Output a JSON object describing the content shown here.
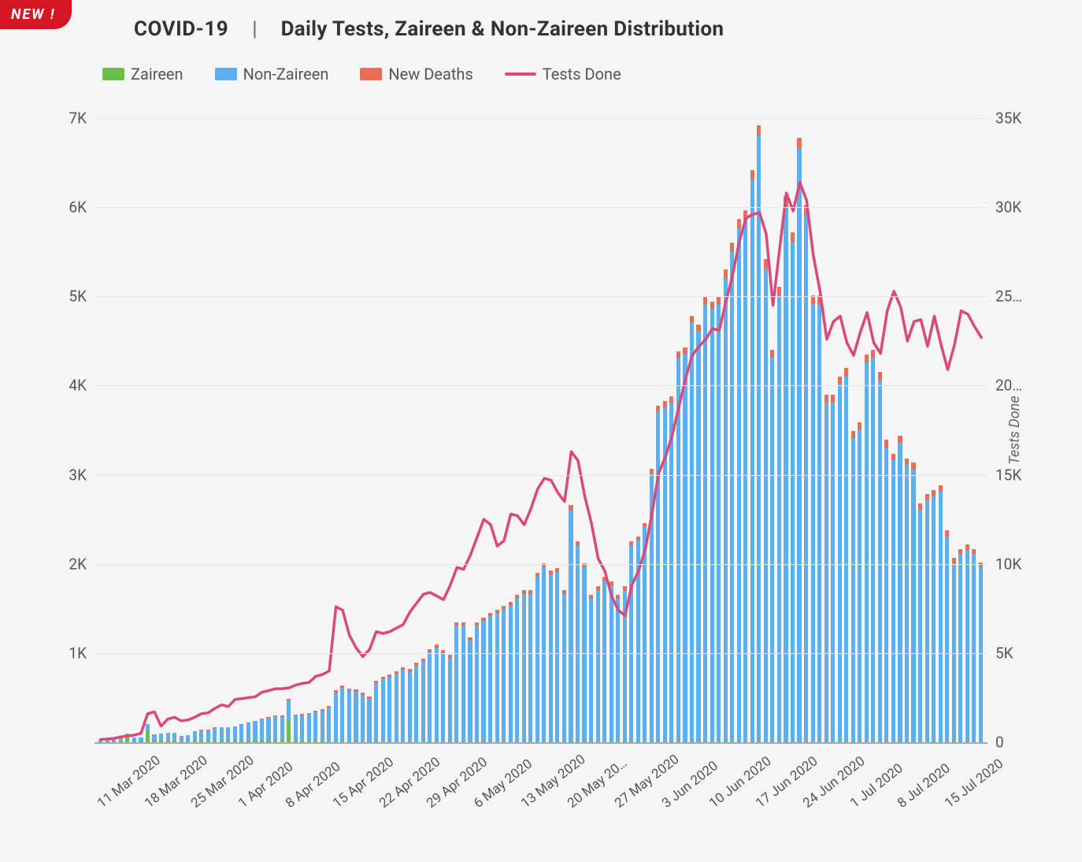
{
  "badge": "NEW !",
  "title": {
    "prefix": "COVID-19",
    "separator": "|",
    "description": "Daily Tests, Zaireen & Non-Zaireen Distribution"
  },
  "legend": [
    {
      "label": "Zaireen",
      "type": "swatch",
      "color": "#6abf4b"
    },
    {
      "label": "Non-Zaireen",
      "type": "swatch",
      "color": "#5bb0ef"
    },
    {
      "label": "New Deaths",
      "type": "swatch",
      "color": "#e86e5a"
    },
    {
      "label": "Tests Done",
      "type": "line",
      "color": "#d94a7a"
    }
  ],
  "chart": {
    "type": "bar+line",
    "background_color": "#f5f5f5",
    "grid_color": "#e6e6e6",
    "axis_color": "#a9a9a9",
    "bar_width_ratio": 0.68,
    "line_width": 3.5,
    "y_left": {
      "min": 0,
      "max": 7000,
      "ticks": [
        0,
        1000,
        2000,
        3000,
        4000,
        5000,
        6000,
        7000
      ],
      "tick_labels": [
        "",
        "1K",
        "2K",
        "3K",
        "4K",
        "5K",
        "6K",
        "7K"
      ],
      "fontsize": 19,
      "color": "#555"
    },
    "y_right": {
      "title": "Tests Done",
      "min": 0,
      "max": 35000,
      "ticks": [
        0,
        5000,
        10000,
        15000,
        20000,
        25000,
        30000,
        35000
      ],
      "tick_labels": [
        "0",
        "5K",
        "10K",
        "15K",
        "20…",
        "25…",
        "30K",
        "35K"
      ],
      "fontsize": 19,
      "color": "#555"
    },
    "x": {
      "ticks_every": 7,
      "start_index": 0,
      "labels": [
        "11 Mar 2020",
        "18 Mar 2020",
        "25 Mar 2020",
        "1 Apr 2020",
        "8 Apr 2020",
        "15 Apr 2020",
        "22 Apr 2020",
        "29 Apr 2020",
        "6 May 2020",
        "13 May 2020",
        "20 May 20…",
        "27 May 2020",
        "3 Jun 2020",
        "10 Jun 2020",
        "17 Jun 2020",
        "24 Jun 2020",
        "1 Jul 2020",
        "8 Jul 2020",
        "15 Jul 2020"
      ],
      "fontsize": 17,
      "color": "#555",
      "rotation_deg": -38
    },
    "series_stack_order": [
      "zaireen",
      "non_zaireen",
      "new_deaths"
    ],
    "series_colors": {
      "zaireen": "#6abf4b",
      "non_zaireen": "#5bb0ef",
      "new_deaths": "#e86e5a",
      "tests_done": "#d94a7a"
    },
    "data": [
      {
        "zaireen": 5,
        "non_zaireen": 20,
        "new_deaths": 0,
        "tests_done": 150
      },
      {
        "zaireen": 5,
        "non_zaireen": 22,
        "new_deaths": 0,
        "tests_done": 180
      },
      {
        "zaireen": 5,
        "non_zaireen": 25,
        "new_deaths": 0,
        "tests_done": 210
      },
      {
        "zaireen": 20,
        "non_zaireen": 48,
        "new_deaths": 1,
        "tests_done": 300
      },
      {
        "zaireen": 60,
        "non_zaireen": 40,
        "new_deaths": 1,
        "tests_done": 350
      },
      {
        "zaireen": 10,
        "non_zaireen": 40,
        "new_deaths": 1,
        "tests_done": 400
      },
      {
        "zaireen": 5,
        "non_zaireen": 50,
        "new_deaths": 1,
        "tests_done": 500
      },
      {
        "zaireen": 120,
        "non_zaireen": 80,
        "new_deaths": 2,
        "tests_done": 1600
      },
      {
        "zaireen": 30,
        "non_zaireen": 60,
        "new_deaths": 2,
        "tests_done": 1700
      },
      {
        "zaireen": 15,
        "non_zaireen": 80,
        "new_deaths": 2,
        "tests_done": 900
      },
      {
        "zaireen": 15,
        "non_zaireen": 90,
        "new_deaths": 2,
        "tests_done": 1300
      },
      {
        "zaireen": 20,
        "non_zaireen": 85,
        "new_deaths": 2,
        "tests_done": 1400
      },
      {
        "zaireen": 10,
        "non_zaireen": 55,
        "new_deaths": 2,
        "tests_done": 1200
      },
      {
        "zaireen": 10,
        "non_zaireen": 70,
        "new_deaths": 3,
        "tests_done": 1250
      },
      {
        "zaireen": 15,
        "non_zaireen": 110,
        "new_deaths": 3,
        "tests_done": 1400
      },
      {
        "zaireen": 15,
        "non_zaireen": 120,
        "new_deaths": 3,
        "tests_done": 1600
      },
      {
        "zaireen": 15,
        "non_zaireen": 120,
        "new_deaths": 3,
        "tests_done": 1650
      },
      {
        "zaireen": 20,
        "non_zaireen": 140,
        "new_deaths": 4,
        "tests_done": 1900
      },
      {
        "zaireen": 15,
        "non_zaireen": 150,
        "new_deaths": 4,
        "tests_done": 2100
      },
      {
        "zaireen": 15,
        "non_zaireen": 150,
        "new_deaths": 4,
        "tests_done": 2000
      },
      {
        "zaireen": 15,
        "non_zaireen": 160,
        "new_deaths": 5,
        "tests_done": 2400
      },
      {
        "zaireen": 15,
        "non_zaireen": 180,
        "new_deaths": 5,
        "tests_done": 2450
      },
      {
        "zaireen": 15,
        "non_zaireen": 200,
        "new_deaths": 5,
        "tests_done": 2500
      },
      {
        "zaireen": 15,
        "non_zaireen": 220,
        "new_deaths": 6,
        "tests_done": 2550
      },
      {
        "zaireen": 15,
        "non_zaireen": 240,
        "new_deaths": 7,
        "tests_done": 2800
      },
      {
        "zaireen": 15,
        "non_zaireen": 260,
        "new_deaths": 10,
        "tests_done": 2900
      },
      {
        "zaireen": 15,
        "non_zaireen": 280,
        "new_deaths": 10,
        "tests_done": 3000
      },
      {
        "zaireen": 30,
        "non_zaireen": 250,
        "new_deaths": 20,
        "tests_done": 3000
      },
      {
        "zaireen": 250,
        "non_zaireen": 220,
        "new_deaths": 12,
        "tests_done": 3050
      },
      {
        "zaireen": 20,
        "non_zaireen": 280,
        "new_deaths": 12,
        "tests_done": 3200
      },
      {
        "zaireen": 15,
        "non_zaireen": 290,
        "new_deaths": 12,
        "tests_done": 3300
      },
      {
        "zaireen": 15,
        "non_zaireen": 300,
        "new_deaths": 14,
        "tests_done": 3350
      },
      {
        "zaireen": 15,
        "non_zaireen": 320,
        "new_deaths": 16,
        "tests_done": 3700
      },
      {
        "zaireen": 15,
        "non_zaireen": 340,
        "new_deaths": 18,
        "tests_done": 3800
      },
      {
        "zaireen": 10,
        "non_zaireen": 380,
        "new_deaths": 18,
        "tests_done": 4000
      },
      {
        "zaireen": 10,
        "non_zaireen": 550,
        "new_deaths": 24,
        "tests_done": 7600
      },
      {
        "zaireen": 10,
        "non_zaireen": 600,
        "new_deaths": 24,
        "tests_done": 7400
      },
      {
        "zaireen": 10,
        "non_zaireen": 570,
        "new_deaths": 22,
        "tests_done": 6000
      },
      {
        "zaireen": 10,
        "non_zaireen": 560,
        "new_deaths": 26,
        "tests_done": 5300
      },
      {
        "zaireen": 10,
        "non_zaireen": 520,
        "new_deaths": 24,
        "tests_done": 4800
      },
      {
        "zaireen": 10,
        "non_zaireen": 480,
        "new_deaths": 20,
        "tests_done": 5200
      },
      {
        "zaireen": 10,
        "non_zaireen": 650,
        "new_deaths": 26,
        "tests_done": 6200
      },
      {
        "zaireen": 10,
        "non_zaireen": 700,
        "new_deaths": 24,
        "tests_done": 6100
      },
      {
        "zaireen": 10,
        "non_zaireen": 720,
        "new_deaths": 28,
        "tests_done": 6200
      },
      {
        "zaireen": 10,
        "non_zaireen": 760,
        "new_deaths": 28,
        "tests_done": 6400
      },
      {
        "zaireen": 10,
        "non_zaireen": 800,
        "new_deaths": 30,
        "tests_done": 6600
      },
      {
        "zaireen": 10,
        "non_zaireen": 780,
        "new_deaths": 28,
        "tests_done": 7300
      },
      {
        "zaireen": 10,
        "non_zaireen": 850,
        "new_deaths": 30,
        "tests_done": 7800
      },
      {
        "zaireen": 10,
        "non_zaireen": 900,
        "new_deaths": 30,
        "tests_done": 8300
      },
      {
        "zaireen": 10,
        "non_zaireen": 1000,
        "new_deaths": 32,
        "tests_done": 8400
      },
      {
        "zaireen": 10,
        "non_zaireen": 1050,
        "new_deaths": 34,
        "tests_done": 8200
      },
      {
        "zaireen": 10,
        "non_zaireen": 990,
        "new_deaths": 34,
        "tests_done": 8000
      },
      {
        "zaireen": 10,
        "non_zaireen": 940,
        "new_deaths": 34,
        "tests_done": 8800
      },
      {
        "zaireen": 10,
        "non_zaireen": 1300,
        "new_deaths": 36,
        "tests_done": 9800
      },
      {
        "zaireen": 10,
        "non_zaireen": 1300,
        "new_deaths": 34,
        "tests_done": 9700
      },
      {
        "zaireen": 10,
        "non_zaireen": 1130,
        "new_deaths": 34,
        "tests_done": 10500
      },
      {
        "zaireen": 10,
        "non_zaireen": 1300,
        "new_deaths": 36,
        "tests_done": 11500
      },
      {
        "zaireen": 10,
        "non_zaireen": 1350,
        "new_deaths": 38,
        "tests_done": 12500
      },
      {
        "zaireen": 10,
        "non_zaireen": 1400,
        "new_deaths": 38,
        "tests_done": 12200
      },
      {
        "zaireen": 10,
        "non_zaireen": 1440,
        "new_deaths": 38,
        "tests_done": 11000
      },
      {
        "zaireen": 10,
        "non_zaireen": 1480,
        "new_deaths": 40,
        "tests_done": 11300
      },
      {
        "zaireen": 10,
        "non_zaireen": 1520,
        "new_deaths": 40,
        "tests_done": 12800
      },
      {
        "zaireen": 10,
        "non_zaireen": 1600,
        "new_deaths": 42,
        "tests_done": 12700
      },
      {
        "zaireen": 10,
        "non_zaireen": 1650,
        "new_deaths": 42,
        "tests_done": 12200
      },
      {
        "zaireen": 10,
        "non_zaireen": 1650,
        "new_deaths": 42,
        "tests_done": 13100
      },
      {
        "zaireen": 10,
        "non_zaireen": 1850,
        "new_deaths": 44,
        "tests_done": 14200
      },
      {
        "zaireen": 10,
        "non_zaireen": 1950,
        "new_deaths": 44,
        "tests_done": 14800
      },
      {
        "zaireen": 10,
        "non_zaireen": 1870,
        "new_deaths": 44,
        "tests_done": 14700
      },
      {
        "zaireen": 10,
        "non_zaireen": 1900,
        "new_deaths": 44,
        "tests_done": 14000
      },
      {
        "zaireen": 10,
        "non_zaireen": 1650,
        "new_deaths": 44,
        "tests_done": 13500
      },
      {
        "zaireen": 10,
        "non_zaireen": 2600,
        "new_deaths": 48,
        "tests_done": 16300
      },
      {
        "zaireen": 10,
        "non_zaireen": 2200,
        "new_deaths": 48,
        "tests_done": 15800
      },
      {
        "zaireen": 10,
        "non_zaireen": 1950,
        "new_deaths": 46,
        "tests_done": 13800
      },
      {
        "zaireen": 10,
        "non_zaireen": 1600,
        "new_deaths": 44,
        "tests_done": 12300
      },
      {
        "zaireen": 10,
        "non_zaireen": 1700,
        "new_deaths": 42,
        "tests_done": 10300
      },
      {
        "zaireen": 10,
        "non_zaireen": 1800,
        "new_deaths": 42,
        "tests_done": 9600
      },
      {
        "zaireen": 10,
        "non_zaireen": 1750,
        "new_deaths": 40,
        "tests_done": 8200
      },
      {
        "zaireen": 10,
        "non_zaireen": 1600,
        "new_deaths": 40,
        "tests_done": 7400
      },
      {
        "zaireen": 10,
        "non_zaireen": 1700,
        "new_deaths": 44,
        "tests_done": 7100
      },
      {
        "zaireen": 10,
        "non_zaireen": 2200,
        "new_deaths": 48,
        "tests_done": 8800
      },
      {
        "zaireen": 10,
        "non_zaireen": 2250,
        "new_deaths": 48,
        "tests_done": 9600
      },
      {
        "zaireen": 10,
        "non_zaireen": 2400,
        "new_deaths": 50,
        "tests_done": 10800
      },
      {
        "zaireen": 10,
        "non_zaireen": 3000,
        "new_deaths": 55,
        "tests_done": 12800
      },
      {
        "zaireen": 10,
        "non_zaireen": 3700,
        "new_deaths": 64,
        "tests_done": 15100
      },
      {
        "zaireen": 10,
        "non_zaireen": 3750,
        "new_deaths": 64,
        "tests_done": 16000
      },
      {
        "zaireen": 10,
        "non_zaireen": 3800,
        "new_deaths": 66,
        "tests_done": 17200
      },
      {
        "zaireen": 10,
        "non_zaireen": 4300,
        "new_deaths": 70,
        "tests_done": 18800
      },
      {
        "zaireen": 10,
        "non_zaireen": 4350,
        "new_deaths": 72,
        "tests_done": 20400
      },
      {
        "zaireen": 10,
        "non_zaireen": 4700,
        "new_deaths": 74,
        "tests_done": 21700
      },
      {
        "zaireen": 10,
        "non_zaireen": 4600,
        "new_deaths": 76,
        "tests_done": 22200
      },
      {
        "zaireen": 10,
        "non_zaireen": 4900,
        "new_deaths": 80,
        "tests_done": 22600
      },
      {
        "zaireen": 10,
        "non_zaireen": 4850,
        "new_deaths": 80,
        "tests_done": 23200
      },
      {
        "zaireen": 10,
        "non_zaireen": 4900,
        "new_deaths": 82,
        "tests_done": 23100
      },
      {
        "zaireen": 10,
        "non_zaireen": 5200,
        "new_deaths": 90,
        "tests_done": 24700
      },
      {
        "zaireen": 10,
        "non_zaireen": 5500,
        "new_deaths": 97,
        "tests_done": 26200
      },
      {
        "zaireen": 10,
        "non_zaireen": 5750,
        "new_deaths": 105,
        "tests_done": 28100
      },
      {
        "zaireen": 10,
        "non_zaireen": 5850,
        "new_deaths": 108,
        "tests_done": 29400
      },
      {
        "zaireen": 10,
        "non_zaireen": 6300,
        "new_deaths": 110,
        "tests_done": 29600
      },
      {
        "zaireen": 10,
        "non_zaireen": 6800,
        "new_deaths": 115,
        "tests_done": 29700
      },
      {
        "zaireen": 10,
        "non_zaireen": 5300,
        "new_deaths": 105,
        "tests_done": 28500
      },
      {
        "zaireen": 10,
        "non_zaireen": 4300,
        "new_deaths": 90,
        "tests_done": 24500
      },
      {
        "zaireen": 10,
        "non_zaireen": 5000,
        "new_deaths": 100,
        "tests_done": 27700
      },
      {
        "zaireen": 10,
        "non_zaireen": 6000,
        "new_deaths": 115,
        "tests_done": 30800
      },
      {
        "zaireen": 10,
        "non_zaireen": 5600,
        "new_deaths": 110,
        "tests_done": 29800
      },
      {
        "zaireen": 10,
        "non_zaireen": 6650,
        "new_deaths": 120,
        "tests_done": 31400
      },
      {
        "zaireen": 10,
        "non_zaireen": 5900,
        "new_deaths": 115,
        "tests_done": 30400
      },
      {
        "zaireen": 10,
        "non_zaireen": 4900,
        "new_deaths": 102,
        "tests_done": 27300
      },
      {
        "zaireen": 10,
        "non_zaireen": 4900,
        "new_deaths": 100,
        "tests_done": 25300
      },
      {
        "zaireen": 10,
        "non_zaireen": 3800,
        "new_deaths": 86,
        "tests_done": 22600
      },
      {
        "zaireen": 10,
        "non_zaireen": 3800,
        "new_deaths": 88,
        "tests_done": 23600
      },
      {
        "zaireen": 10,
        "non_zaireen": 4000,
        "new_deaths": 90,
        "tests_done": 23900
      },
      {
        "zaireen": 10,
        "non_zaireen": 4100,
        "new_deaths": 92,
        "tests_done": 22400
      },
      {
        "zaireen": 10,
        "non_zaireen": 3400,
        "new_deaths": 80,
        "tests_done": 21700
      },
      {
        "zaireen": 10,
        "non_zaireen": 3500,
        "new_deaths": 82,
        "tests_done": 23000
      },
      {
        "zaireen": 10,
        "non_zaireen": 4250,
        "new_deaths": 92,
        "tests_done": 24100
      },
      {
        "zaireen": 10,
        "non_zaireen": 4300,
        "new_deaths": 95,
        "tests_done": 22400
      },
      {
        "zaireen": 10,
        "non_zaireen": 4050,
        "new_deaths": 90,
        "tests_done": 21800
      },
      {
        "zaireen": 10,
        "non_zaireen": 3300,
        "new_deaths": 80,
        "tests_done": 24200
      },
      {
        "zaireen": 10,
        "non_zaireen": 3150,
        "new_deaths": 78,
        "tests_done": 25300
      },
      {
        "zaireen": 10,
        "non_zaireen": 3350,
        "new_deaths": 80,
        "tests_done": 24400
      },
      {
        "zaireen": 10,
        "non_zaireen": 3100,
        "new_deaths": 76,
        "tests_done": 22500
      },
      {
        "zaireen": 10,
        "non_zaireen": 3050,
        "new_deaths": 74,
        "tests_done": 23600
      },
      {
        "zaireen": 10,
        "non_zaireen": 2600,
        "new_deaths": 68,
        "tests_done": 23700
      },
      {
        "zaireen": 10,
        "non_zaireen": 2700,
        "new_deaths": 70,
        "tests_done": 22200
      },
      {
        "zaireen": 10,
        "non_zaireen": 2750,
        "new_deaths": 70,
        "tests_done": 23900
      },
      {
        "zaireen": 10,
        "non_zaireen": 2800,
        "new_deaths": 72,
        "tests_done": 22300
      },
      {
        "zaireen": 10,
        "non_zaireen": 2300,
        "new_deaths": 64,
        "tests_done": 20900
      },
      {
        "zaireen": 10,
        "non_zaireen": 2000,
        "new_deaths": 58,
        "tests_done": 22300
      },
      {
        "zaireen": 10,
        "non_zaireen": 2100,
        "new_deaths": 60,
        "tests_done": 24200
      },
      {
        "zaireen": 10,
        "non_zaireen": 2150,
        "new_deaths": 62,
        "tests_done": 24000
      },
      {
        "zaireen": 10,
        "non_zaireen": 2100,
        "new_deaths": 60,
        "tests_done": 23300
      },
      {
        "zaireen": 10,
        "non_zaireen": 1950,
        "new_deaths": 56,
        "tests_done": 22700
      }
    ]
  }
}
